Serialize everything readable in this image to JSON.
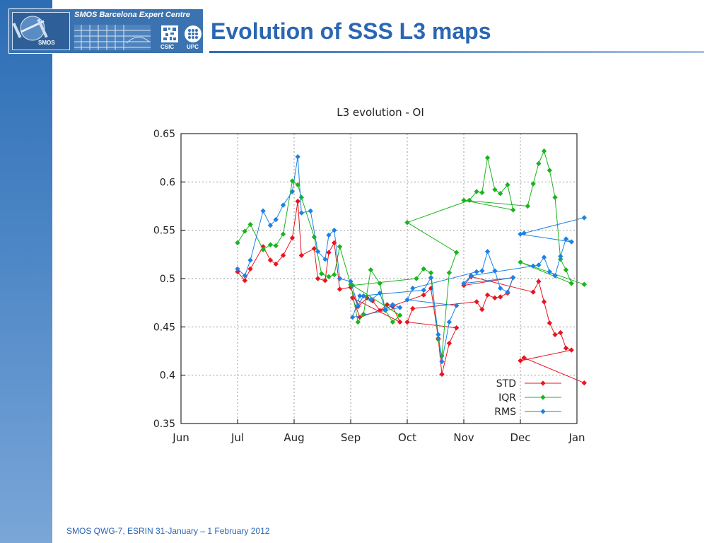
{
  "slide": {
    "title": "Evolution of SSS L3 maps",
    "footer": "SMOS QWG-7, ESRIN 31-January – 1 February 2012",
    "banner": {
      "text": "SMOS Barcelona Expert Centre",
      "smos_label": "SMOS",
      "csic_label": "CSIC",
      "upc_label": "UPC"
    },
    "colors": {
      "accent": "#2a66b3",
      "sidebar": "#3b73b0"
    }
  },
  "chart_data": {
    "type": "line",
    "title": "L3 evolution - OI",
    "xlabel": "",
    "ylabel": "",
    "x_ticks": [
      "Jun",
      "Jul",
      "Aug",
      "Sep",
      "Oct",
      "Nov",
      "Dec",
      "Jan"
    ],
    "x_range": [
      "Jun",
      "Jan"
    ],
    "ylim": [
      0.35,
      0.65
    ],
    "y_ticks": [
      "0.35",
      "0.4",
      "0.45",
      "0.5",
      "0.55",
      "0.6",
      "0.65"
    ],
    "grid": true,
    "legend_position": "bottom-right",
    "series": [
      {
        "name": "STD",
        "color": "#e8141e",
        "x": [
          "Jul",
          "Jul",
          "Jul",
          "Jul",
          "Jul",
          "Jul",
          "Jul",
          "Jul",
          "Aug",
          "Aug",
          "Aug",
          "Aug",
          "Aug",
          "Aug",
          "Aug",
          "Aug",
          "Sep",
          "Sep",
          "Sep",
          "Sep",
          "Sep",
          "Sep",
          "Sep",
          "Sep",
          "Sep",
          "Sep",
          "Oct",
          "Oct",
          "Oct",
          "Oct",
          "Oct",
          "Oct",
          "Oct",
          "Oct",
          "Nov",
          "Nov",
          "Nov",
          "Nov",
          "Nov",
          "Nov",
          "Nov",
          "Nov",
          "Nov",
          "Dec",
          "Dec",
          "Dec",
          "Dec",
          "Dec",
          "Dec",
          "Dec",
          "Dec",
          "Dec",
          "Dec",
          "Jan"
        ],
        "day": [
          1,
          5,
          8,
          15,
          19,
          22,
          26,
          31,
          3,
          5,
          12,
          14,
          18,
          20,
          23,
          26,
          1,
          5,
          10,
          13,
          17,
          21,
          24,
          28,
          2,
          6,
          10,
          14,
          18,
          20,
          24,
          28,
          1,
          4,
          8,
          11,
          14,
          18,
          21,
          25,
          28,
          1,
          5,
          8,
          11,
          14,
          17,
          20,
          23,
          26,
          29,
          1,
          3,
          5
        ],
        "values": [
          0.507,
          0.498,
          0.51,
          0.533,
          0.519,
          0.515,
          0.524,
          0.542,
          0.58,
          0.524,
          0.531,
          0.5,
          0.498,
          0.527,
          0.537,
          0.489,
          0.491,
          0.471,
          0.48,
          0.477,
          0.467,
          0.473,
          0.471,
          0.455,
          0.48,
          0.46,
          0.483,
          0.49,
          0.438,
          0.401,
          0.433,
          0.449,
          0.455,
          0.469,
          0.476,
          0.468,
          0.483,
          0.48,
          0.481,
          0.485,
          0.501,
          0.493,
          0.502,
          0.486,
          0.497,
          0.476,
          0.454,
          0.442,
          0.444,
          0.428,
          0.426,
          0.415,
          0.418,
          0.392
        ]
      },
      {
        "name": "IQR",
        "color": "#1ab41e",
        "x": [
          "Jul",
          "Jul",
          "Jul",
          "Jul",
          "Jul",
          "Jul",
          "Jul",
          "Jul",
          "Aug",
          "Aug",
          "Aug",
          "Aug",
          "Aug",
          "Aug",
          "Aug",
          "Sep",
          "Sep",
          "Sep",
          "Sep",
          "Sep",
          "Sep",
          "Sep",
          "Sep",
          "Sep",
          "Oct",
          "Oct",
          "Oct",
          "Oct",
          "Oct",
          "Oct",
          "Oct",
          "Oct",
          "Nov",
          "Nov",
          "Nov",
          "Nov",
          "Nov",
          "Nov",
          "Nov",
          "Nov",
          "Nov",
          "Dec",
          "Dec",
          "Dec",
          "Dec",
          "Dec",
          "Dec",
          "Dec",
          "Dec",
          "Dec",
          "Dec",
          "Jan"
        ],
        "day": [
          1,
          5,
          8,
          15,
          19,
          22,
          26,
          31,
          3,
          5,
          12,
          16,
          20,
          23,
          26,
          1,
          5,
          8,
          12,
          17,
          20,
          24,
          28,
          2,
          6,
          10,
          14,
          18,
          20,
          24,
          28,
          1,
          4,
          8,
          11,
          14,
          18,
          21,
          25,
          28,
          1,
          5,
          8,
          11,
          14,
          17,
          20,
          23,
          26,
          29,
          1,
          5
        ],
        "values": [
          0.537,
          0.549,
          0.556,
          0.53,
          0.535,
          0.534,
          0.546,
          0.601,
          0.597,
          0.584,
          0.543,
          0.505,
          0.502,
          0.504,
          0.533,
          0.494,
          0.455,
          0.463,
          0.509,
          0.495,
          0.467,
          0.455,
          0.462,
          0.493,
          0.5,
          0.51,
          0.506,
          0.437,
          0.42,
          0.506,
          0.527,
          0.558,
          0.581,
          0.59,
          0.589,
          0.625,
          0.592,
          0.588,
          0.597,
          0.571,
          0.581,
          0.575,
          0.598,
          0.619,
          0.632,
          0.612,
          0.584,
          0.52,
          0.509,
          0.495,
          0.517,
          0.494
        ]
      },
      {
        "name": "RMS",
        "color": "#1a82e6",
        "x": [
          "Jul",
          "Jul",
          "Jul",
          "Jul",
          "Jul",
          "Jul",
          "Jul",
          "Jul",
          "Aug",
          "Aug",
          "Aug",
          "Aug",
          "Aug",
          "Aug",
          "Aug",
          "Aug",
          "Sep",
          "Sep",
          "Sep",
          "Sep",
          "Sep",
          "Sep",
          "Sep",
          "Sep",
          "Sep",
          "Sep",
          "Oct",
          "Oct",
          "Oct",
          "Oct",
          "Oct",
          "Oct",
          "Oct",
          "Oct",
          "Nov",
          "Nov",
          "Nov",
          "Nov",
          "Nov",
          "Nov",
          "Nov",
          "Nov",
          "Nov",
          "Dec",
          "Dec",
          "Dec",
          "Dec",
          "Dec",
          "Dec",
          "Dec",
          "Dec",
          "Dec",
          "Dec",
          "Jan"
        ],
        "day": [
          1,
          5,
          8,
          15,
          19,
          22,
          26,
          31,
          3,
          5,
          10,
          14,
          18,
          20,
          23,
          26,
          1,
          5,
          8,
          12,
          17,
          20,
          24,
          28,
          2,
          6,
          10,
          14,
          18,
          20,
          24,
          28,
          1,
          4,
          8,
          11,
          14,
          18,
          21,
          25,
          28,
          1,
          5,
          8,
          11,
          14,
          17,
          20,
          23,
          26,
          29,
          1,
          3,
          5
        ],
        "values": [
          0.51,
          0.503,
          0.519,
          0.57,
          0.555,
          0.561,
          0.576,
          0.59,
          0.626,
          0.568,
          0.57,
          0.528,
          0.52,
          0.545,
          0.55,
          0.5,
          0.497,
          0.472,
          0.482,
          0.478,
          0.485,
          0.468,
          0.473,
          0.47,
          0.46,
          0.482,
          0.488,
          0.501,
          0.442,
          0.414,
          0.455,
          0.472,
          0.478,
          0.49,
          0.507,
          0.508,
          0.528,
          0.508,
          0.49,
          0.486,
          0.501,
          0.495,
          0.503,
          0.513,
          0.514,
          0.522,
          0.507,
          0.503,
          0.523,
          0.541,
          0.538,
          0.546,
          0.547,
          0.563
        ]
      }
    ]
  }
}
